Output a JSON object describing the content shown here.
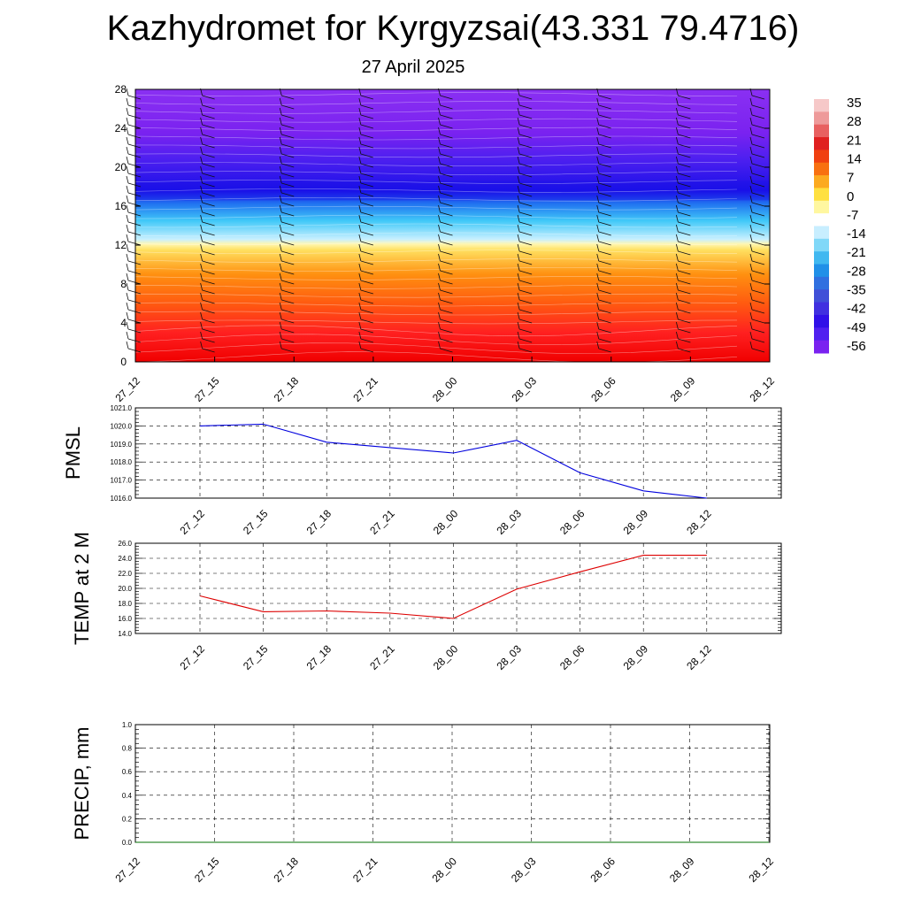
{
  "title": "Kazhydromet for Kyrgyzsai(43.331 79.4716)",
  "subtitle": "27 April 2025",
  "chart_data": [
    {
      "type": "heatmap",
      "x_ticks": [
        "27_12",
        "27_15",
        "27_18",
        "27_21",
        "28_00",
        "28_03",
        "28_06",
        "28_09",
        "28_12"
      ],
      "y_ticks": [
        "0",
        "4",
        "8",
        "12",
        "16",
        "20",
        "24",
        "28"
      ],
      "ylim": [
        0,
        28
      ],
      "colorbar_labels": [
        "35",
        "28",
        "21",
        "14",
        "7",
        "0",
        "-7",
        "-14",
        "-21",
        "-28",
        "-35",
        "-42",
        "-49",
        "-56"
      ],
      "levels": [
        {
          "z": 0,
          "value": 35
        },
        {
          "z": 3,
          "value": 30
        },
        {
          "z": 6,
          "value": 20
        },
        {
          "z": 9,
          "value": 8
        },
        {
          "z": 11.5,
          "value": -4
        },
        {
          "z": 12.5,
          "value": -14
        },
        {
          "z": 14.5,
          "value": -28
        },
        {
          "z": 16.5,
          "value": -45
        },
        {
          "z": 18,
          "value": -60
        },
        {
          "z": 21,
          "value": -55
        },
        {
          "z": 23,
          "value": -52
        },
        {
          "z": 28,
          "value": -50
        }
      ],
      "colors": {
        "dark_red": "#f00000",
        "red": "#ff2020",
        "orange_red": "#ff5a10",
        "orange": "#ff9010",
        "yellow": "#ffe060",
        "pale_yellow": "#fff6b0",
        "pale_blue": "#c8f0ff",
        "light_blue": "#40c8f8",
        "blue": "#2070f0",
        "deep_blue": "#1a10e8",
        "violet_blue": "#5020f0",
        "violet": "#7a22f0",
        "light_violet": "#8a30f2"
      }
    },
    {
      "type": "line",
      "ylabel": "PMSL",
      "x": [
        "27_12",
        "27_15",
        "27_18",
        "27_21",
        "28_00",
        "28_03",
        "28_06",
        "28_09",
        "28_12"
      ],
      "series": [
        {
          "values": [
            1020.0,
            1020.1,
            1019.1,
            1018.8,
            1018.5,
            1019.2,
            1017.4,
            1016.4,
            1016.0
          ],
          "color": "#0000dd"
        }
      ],
      "y_ticks": [
        "1016.0",
        "1017.0",
        "1018.0",
        "1019.0",
        "1020.0",
        "1021.0"
      ],
      "ylim": [
        1016,
        1021
      ]
    },
    {
      "type": "line",
      "ylabel": "TEMP at 2 M",
      "x": [
        "27_12",
        "27_15",
        "27_18",
        "27_21",
        "28_00",
        "28_03",
        "28_06",
        "28_09",
        "28_12"
      ],
      "series": [
        {
          "values": [
            19.0,
            16.9,
            17.0,
            16.7,
            16.0,
            19.9,
            22.2,
            24.4,
            24.4
          ],
          "color": "#dd0000"
        }
      ],
      "y_ticks": [
        "14.0",
        "16.0",
        "18.0",
        "20.0",
        "22.0",
        "24.0",
        "26.0"
      ],
      "ylim": [
        14,
        26
      ]
    },
    {
      "type": "line",
      "ylabel": "PRECIP, mm",
      "x": [
        "27_12",
        "27_15",
        "27_18",
        "27_21",
        "28_00",
        "28_03",
        "28_06",
        "28_09",
        "28_12"
      ],
      "series": [
        {
          "values": [
            0,
            0,
            0,
            0,
            0,
            0,
            0,
            0,
            0
          ],
          "color": "#007000"
        }
      ],
      "y_ticks": [
        "0.0",
        "0.2",
        "0.4",
        "0.6",
        "0.8",
        "1.0"
      ],
      "ylim": [
        0,
        1
      ]
    }
  ]
}
